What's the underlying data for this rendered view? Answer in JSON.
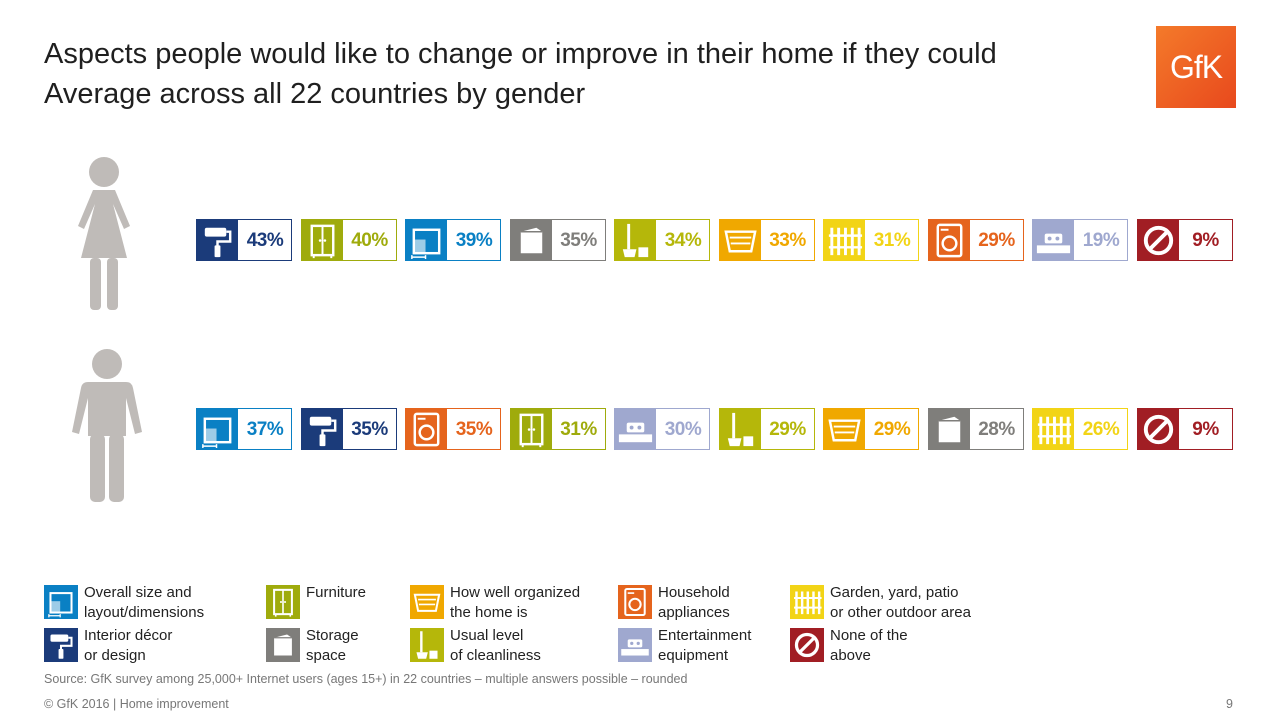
{
  "title": {
    "line1": "Aspects people would like to change or improve in their home if they could",
    "line2": "Average across all 22 countries by gender"
  },
  "logo": {
    "text": "GfK"
  },
  "categories": {
    "size": {
      "color": "#0a80c4",
      "icon": "floorplan-icon"
    },
    "decor": {
      "color": "#1b3b7a",
      "icon": "paint-roller-icon"
    },
    "furniture": {
      "color": "#9fab0c",
      "icon": "wardrobe-icon"
    },
    "storage": {
      "color": "#7f7e7b",
      "icon": "storage-box-icon"
    },
    "organized": {
      "color": "#f0a800",
      "icon": "drawer-icon"
    },
    "cleanliness": {
      "color": "#b5b70a",
      "icon": "broom-bucket-icon"
    },
    "appliances": {
      "color": "#e5641d",
      "icon": "washing-machine-icon"
    },
    "entertainment": {
      "color": "#9fa8cf",
      "icon": "tv-console-icon"
    },
    "garden": {
      "color": "#f2d416",
      "icon": "fence-icon"
    },
    "none": {
      "color": "#a11e24",
      "icon": "prohibited-icon"
    }
  },
  "chart_data": {
    "type": "bar",
    "title": "Aspects people would like to change or improve in their home if they could",
    "subtitle": "Average across all 22 countries by gender",
    "categories": [
      "Overall size and layout/dimensions",
      "Interior décor or design",
      "Furniture",
      "Storage space",
      "How well organized the home is",
      "Usual level of cleanliness",
      "Household appliances",
      "Entertainment equipment",
      "Garden, yard, patio or other outdoor area",
      "None of the above"
    ],
    "series": [
      {
        "group": "female",
        "items": [
          {
            "key": "decor",
            "value": 43,
            "label": "43%"
          },
          {
            "key": "furniture",
            "value": 40,
            "label": "40%"
          },
          {
            "key": "size",
            "value": 39,
            "label": "39%"
          },
          {
            "key": "storage",
            "value": 35,
            "label": "35%"
          },
          {
            "key": "cleanliness",
            "value": 34,
            "label": "34%"
          },
          {
            "key": "organized",
            "value": 33,
            "label": "33%"
          },
          {
            "key": "garden",
            "value": 31,
            "label": "31%"
          },
          {
            "key": "appliances",
            "value": 29,
            "label": "29%"
          },
          {
            "key": "entertainment",
            "value": 19,
            "label": "19%"
          },
          {
            "key": "none",
            "value": 9,
            "label": "9%"
          }
        ]
      },
      {
        "group": "male",
        "items": [
          {
            "key": "size",
            "value": 37,
            "label": "37%"
          },
          {
            "key": "decor",
            "value": 35,
            "label": "35%"
          },
          {
            "key": "appliances",
            "value": 35,
            "label": "35%"
          },
          {
            "key": "furniture",
            "value": 31,
            "label": "31%"
          },
          {
            "key": "entertainment",
            "value": 30,
            "label": "30%"
          },
          {
            "key": "cleanliness",
            "value": 29,
            "label": "29%"
          },
          {
            "key": "organized",
            "value": 29,
            "label": "29%"
          },
          {
            "key": "storage",
            "value": 28,
            "label": "28%"
          },
          {
            "key": "garden",
            "value": 26,
            "label": "26%"
          },
          {
            "key": "none",
            "value": 9,
            "label": "9%"
          }
        ]
      }
    ]
  },
  "legend": [
    {
      "key": "size",
      "lines": [
        "Overall size and",
        "layout/dimensions"
      ]
    },
    {
      "key": "decor",
      "lines": [
        "Interior décor",
        "or design"
      ]
    },
    {
      "key": "furniture",
      "lines": [
        "Furniture"
      ]
    },
    {
      "key": "storage",
      "lines": [
        "Storage",
        "space"
      ]
    },
    {
      "key": "organized",
      "lines": [
        "How well organized",
        "the home is"
      ]
    },
    {
      "key": "cleanliness",
      "lines": [
        "Usual level",
        "of cleanliness"
      ]
    },
    {
      "key": "appliances",
      "lines": [
        "Household",
        "appliances"
      ]
    },
    {
      "key": "entertainment",
      "lines": [
        "Entertainment",
        "equipment"
      ]
    },
    {
      "key": "garden",
      "lines": [
        "Garden, yard, patio",
        "or other outdoor area"
      ]
    },
    {
      "key": "none",
      "lines": [
        "None of the",
        "above"
      ]
    }
  ],
  "source": "Source: GfK survey among 25,000+ Internet users (ages 15+) in 22 countries – multiple answers possible – rounded",
  "footer": "© GfK 2016 | Home improvement",
  "page_number": "9"
}
